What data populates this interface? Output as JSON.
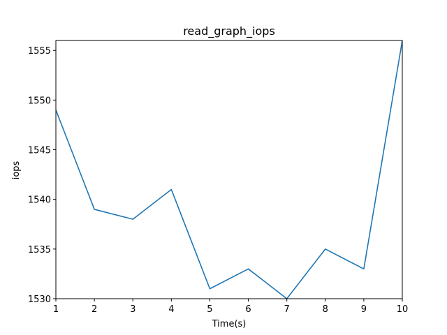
{
  "chart_data": {
    "type": "line",
    "title": "read_graph_iops",
    "xlabel": "Time(s)",
    "ylabel": "iops",
    "x": [
      1,
      2,
      3,
      4,
      5,
      6,
      7,
      8,
      9,
      10
    ],
    "series": [
      {
        "values": [
          1549,
          1539,
          1538,
          1541,
          1531,
          1533,
          1530,
          1535,
          1533,
          1556
        ],
        "color": "#1f77b4"
      }
    ],
    "xlim": [
      1,
      10
    ],
    "ylim": [
      1530,
      1556
    ],
    "xticks": [
      1,
      2,
      3,
      4,
      5,
      6,
      7,
      8,
      9,
      10
    ],
    "yticks": [
      1530,
      1535,
      1540,
      1545,
      1550,
      1555
    ],
    "grid": false,
    "legend": "none"
  }
}
